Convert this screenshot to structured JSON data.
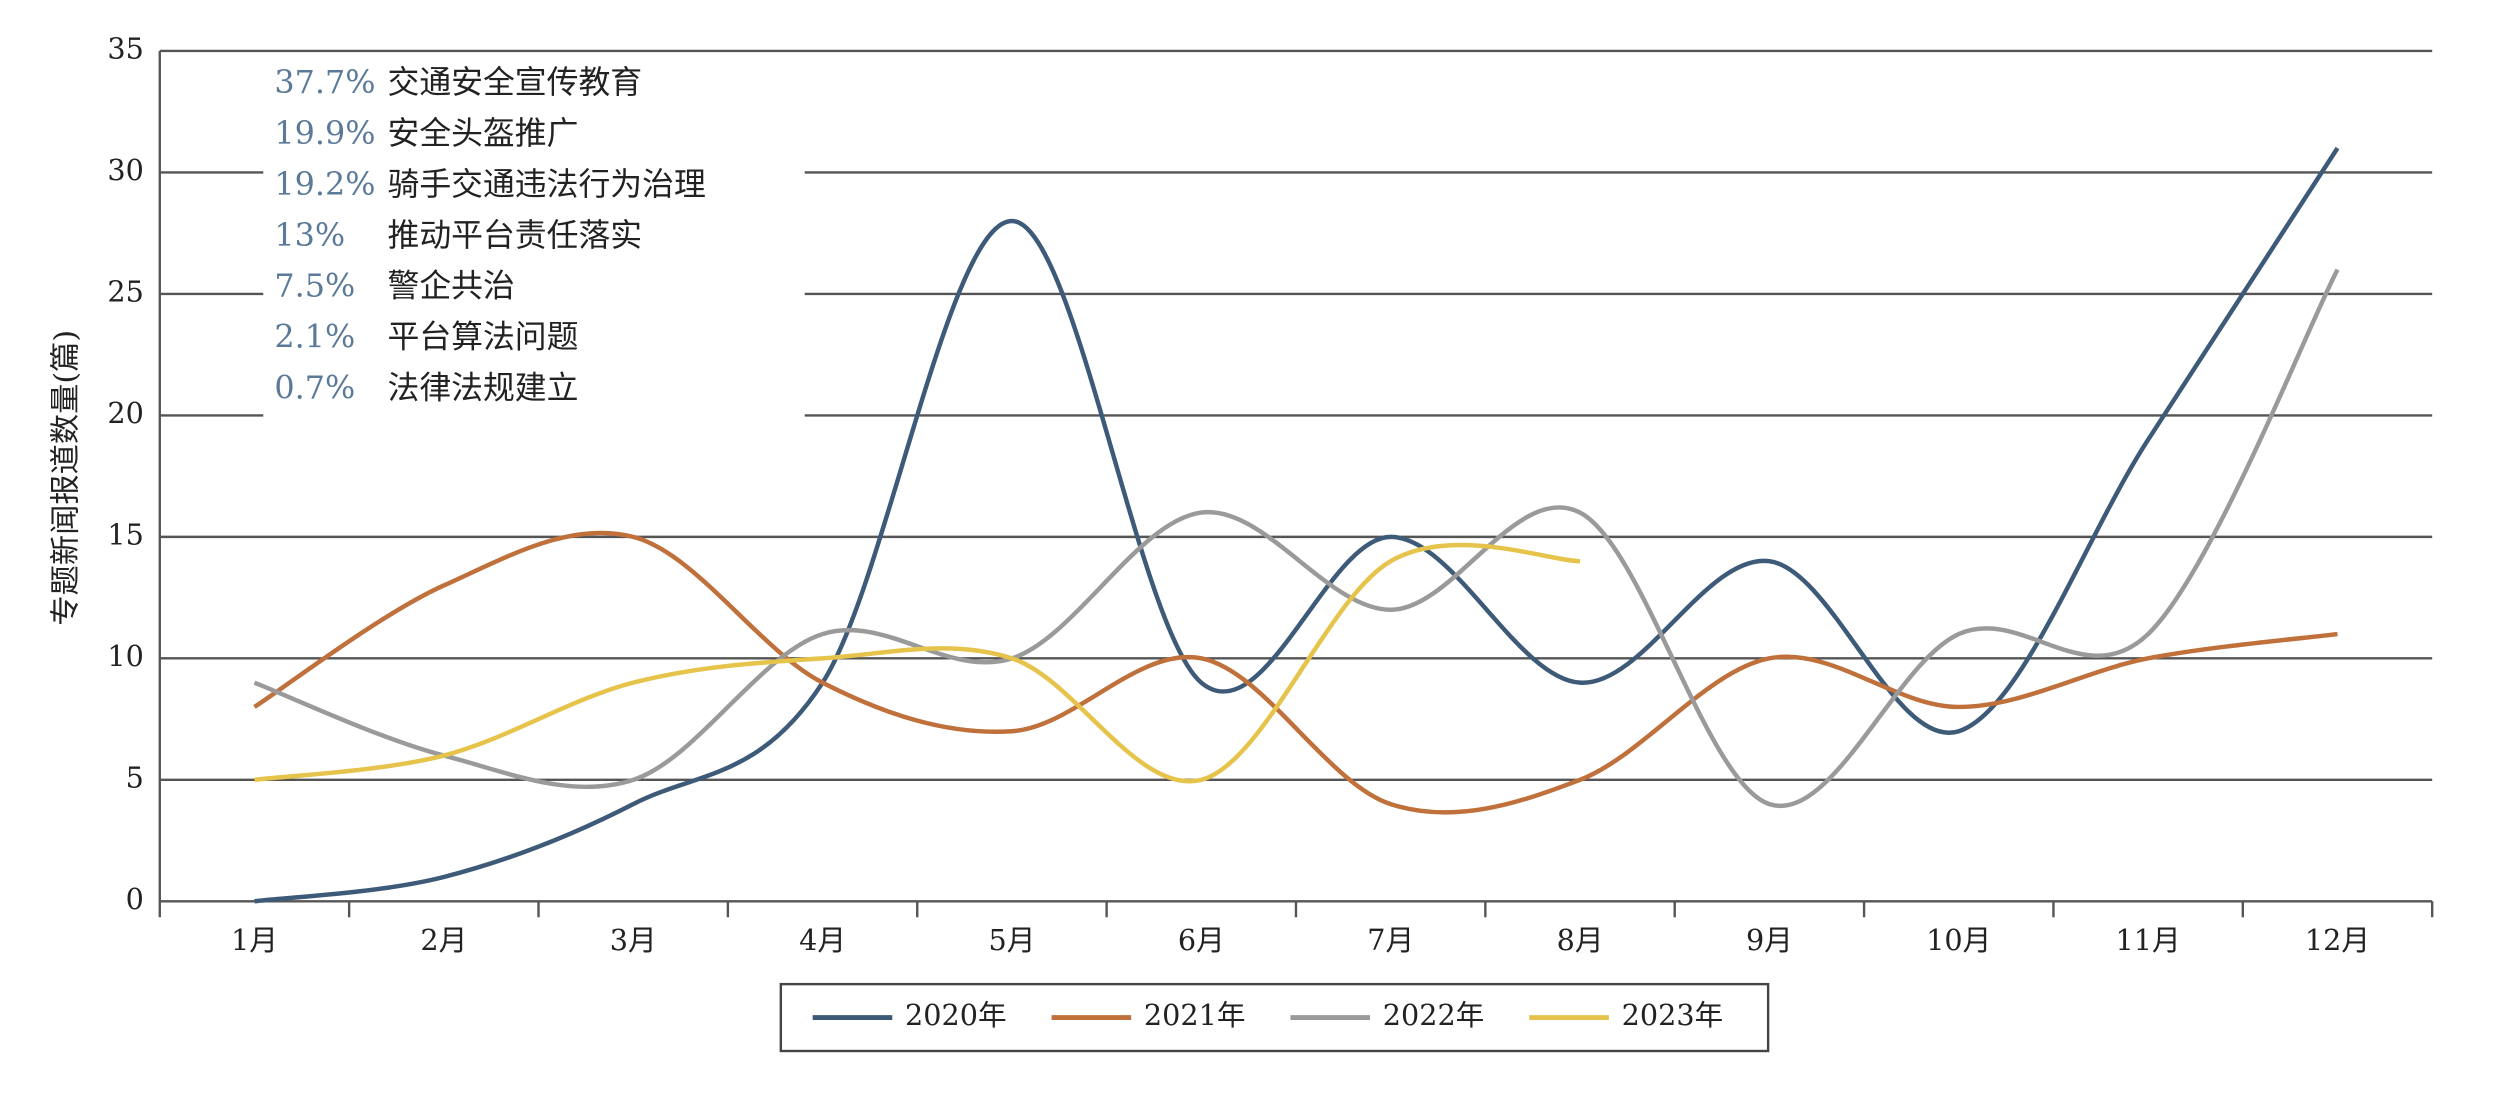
{
  "chart_data": {
    "type": "line",
    "ylabel": "专题新闻报道数量(篇)",
    "categories": [
      "1月",
      "2月",
      "3月",
      "4月",
      "5月",
      "6月",
      "7月",
      "8月",
      "9月",
      "10月",
      "11月",
      "12月"
    ],
    "series": [
      {
        "name": "2020年",
        "color": "#3d5a78",
        "values": [
          0,
          1,
          4,
          9,
          28,
          9,
          15,
          9,
          14,
          7,
          19,
          31
        ]
      },
      {
        "name": "2021年",
        "color": "#c0703a",
        "values": [
          8,
          13,
          15,
          9,
          7,
          10,
          4,
          5,
          10,
          8,
          10,
          11
        ]
      },
      {
        "name": "2022年",
        "color": "#9a9a9a",
        "values": [
          9,
          6,
          5,
          11,
          10,
          16,
          12,
          16,
          4,
          11,
          11,
          26
        ]
      },
      {
        "name": "2023年",
        "color": "#e6c34a",
        "values": [
          5,
          6,
          9,
          10,
          10,
          5,
          14,
          14,
          null,
          null,
          null,
          null
        ]
      }
    ],
    "ylim": [
      0,
      35
    ],
    "yticks": [
      0,
      5,
      10,
      15,
      20,
      25,
      30,
      35
    ],
    "grid": true,
    "legend": "bottom",
    "annotations": [
      {
        "percent": "37.7%",
        "text": "交通安全宣传教育"
      },
      {
        "percent": "19.9%",
        "text": "安全头盔推广"
      },
      {
        "percent": "19.2%",
        "text": "骑手交通违法行为治理"
      },
      {
        "percent": "13%",
        "text": "推动平台责任落实"
      },
      {
        "percent": "7.5%",
        "text": "警企共治"
      },
      {
        "percent": "2.1%",
        "text": "平台算法问题"
      },
      {
        "percent": "0.7%",
        "text": "法律法规建立"
      }
    ]
  }
}
